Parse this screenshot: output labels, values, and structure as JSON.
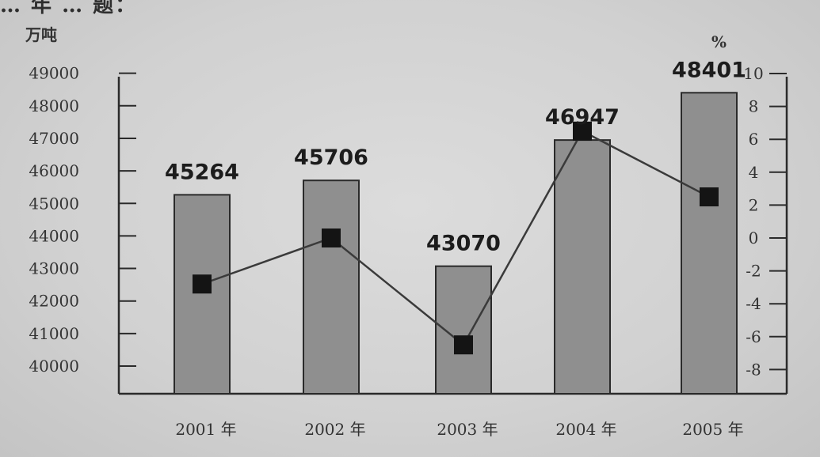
{
  "top_text": "… 年 … 题：",
  "chart_data": {
    "type": "bar",
    "categories": [
      "2001 年",
      "2002 年",
      "2003 年",
      "2004 年",
      "2005 年"
    ],
    "series": [
      {
        "values": [
          45264,
          45706,
          43070,
          46947,
          48401
        ]
      },
      {
        "values": [
          -2.8,
          0,
          -6.5,
          6.5,
          2.5
        ]
      }
    ],
    "bar_labels": [
      "45264",
      "45706",
      "43070",
      "46947",
      "48401"
    ],
    "y_left": {
      "unit": "万吨",
      "ticks": [
        40000,
        41000,
        42000,
        43000,
        44000,
        45000,
        46000,
        47000,
        48000,
        49000
      ],
      "tick_labels": [
        "40000",
        "41000",
        "42000",
        "43000",
        "44000",
        "45000",
        "46000",
        "47000",
        "48000",
        "49000"
      ]
    },
    "y_right": {
      "unit": "%",
      "ticks": [
        -8,
        -6,
        -4,
        -2,
        0,
        2,
        4,
        6,
        8,
        10
      ],
      "tick_labels": [
        "-8",
        "-6",
        "-4",
        "-2",
        "0",
        "2",
        "4",
        "6",
        "8",
        "10"
      ]
    },
    "colors": {
      "bar_fill": "#8f8f8f",
      "bar_stroke": "#2a2a2a",
      "line": "#3a3a3a",
      "marker": "#141414"
    },
    "grid": false
  }
}
